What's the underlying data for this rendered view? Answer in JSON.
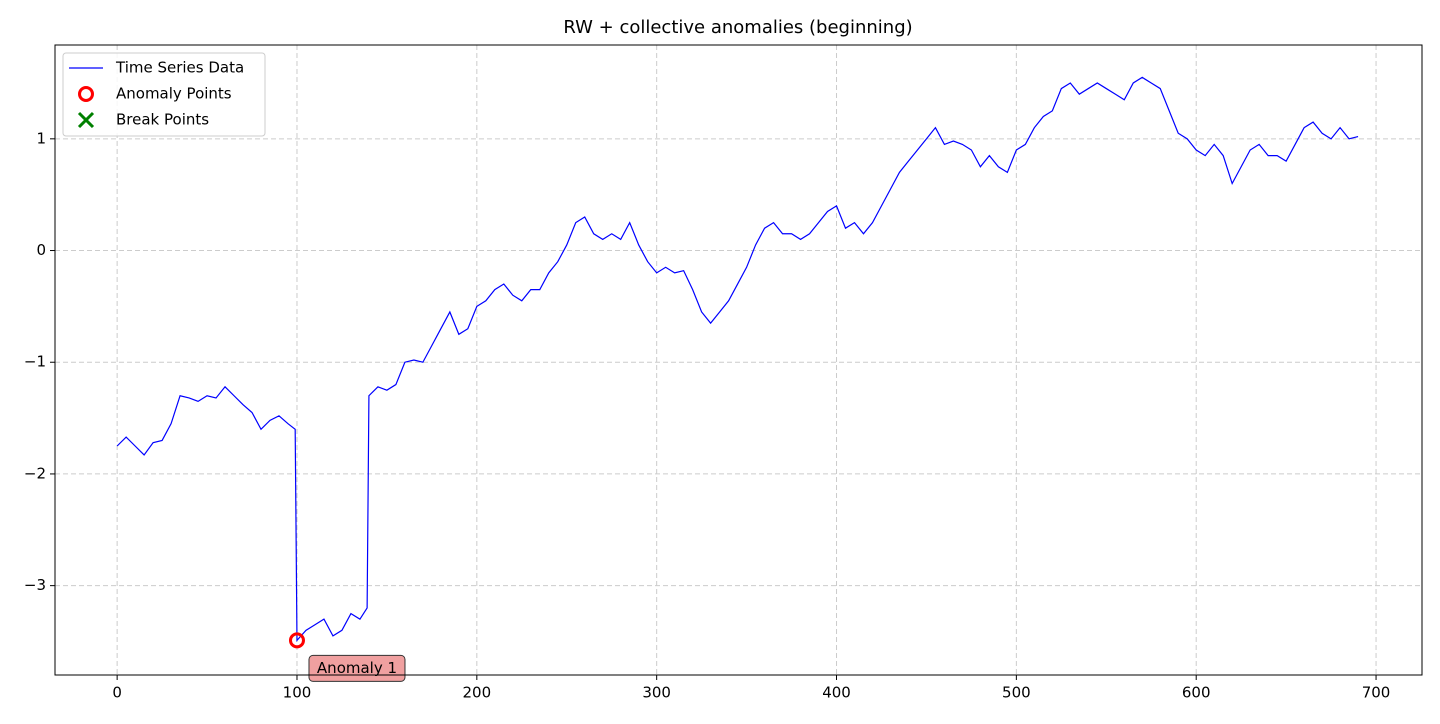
{
  "chart_data": {
    "type": "line",
    "title": "RW + collective anomalies (beginning)",
    "x": [
      0,
      5,
      10,
      15,
      20,
      25,
      30,
      35,
      40,
      45,
      50,
      55,
      60,
      65,
      70,
      75,
      80,
      85,
      90,
      95,
      99,
      100,
      105,
      110,
      115,
      120,
      125,
      130,
      135,
      139,
      140,
      145,
      150,
      155,
      160,
      165,
      170,
      175,
      180,
      185,
      190,
      195,
      200,
      205,
      210,
      215,
      220,
      225,
      230,
      235,
      240,
      245,
      250,
      255,
      260,
      265,
      270,
      275,
      280,
      285,
      290,
      295,
      300,
      305,
      310,
      315,
      320,
      325,
      330,
      335,
      340,
      345,
      350,
      355,
      360,
      365,
      370,
      375,
      380,
      385,
      390,
      395,
      400,
      405,
      410,
      415,
      420,
      425,
      430,
      435,
      440,
      445,
      450,
      455,
      460,
      465,
      470,
      475,
      480,
      485,
      490,
      495,
      500,
      505,
      510,
      515,
      520,
      525,
      530,
      535,
      540,
      545,
      550,
      555,
      560,
      565,
      570,
      575,
      580,
      585,
      590,
      595,
      600,
      605,
      610,
      615,
      620,
      625,
      630,
      635,
      640,
      645,
      650,
      655,
      660,
      665,
      670,
      675,
      680,
      685,
      690
    ],
    "series": [
      {
        "name": "Time Series Data",
        "color": "#0000ff",
        "values": [
          -1.75,
          -1.67,
          -1.75,
          -1.83,
          -1.72,
          -1.7,
          -1.55,
          -1.3,
          -1.32,
          -1.35,
          -1.3,
          -1.32,
          -1.22,
          -1.3,
          -1.38,
          -1.45,
          -1.6,
          -1.52,
          -1.48,
          -1.55,
          -1.6,
          -3.49,
          -3.4,
          -3.35,
          -3.3,
          -3.45,
          -3.4,
          -3.25,
          -3.3,
          -3.2,
          -1.3,
          -1.22,
          -1.25,
          -1.2,
          -1.0,
          -0.98,
          -1.0,
          -0.85,
          -0.7,
          -0.55,
          -0.75,
          -0.7,
          -0.5,
          -0.45,
          -0.35,
          -0.3,
          -0.4,
          -0.45,
          -0.35,
          -0.35,
          -0.2,
          -0.1,
          0.05,
          0.25,
          0.3,
          0.15,
          0.1,
          0.15,
          0.1,
          0.25,
          0.05,
          -0.1,
          -0.2,
          -0.15,
          -0.2,
          -0.18,
          -0.35,
          -0.55,
          -0.65,
          -0.55,
          -0.45,
          -0.3,
          -0.15,
          0.05,
          0.2,
          0.25,
          0.15,
          0.15,
          0.1,
          0.15,
          0.25,
          0.35,
          0.4,
          0.2,
          0.25,
          0.15,
          0.25,
          0.4,
          0.55,
          0.7,
          0.8,
          0.9,
          1.0,
          1.1,
          0.95,
          0.98,
          0.95,
          0.9,
          0.75,
          0.85,
          0.75,
          0.7,
          0.9,
          0.95,
          1.1,
          1.2,
          1.25,
          1.45,
          1.5,
          1.4,
          1.45,
          1.5,
          1.45,
          1.4,
          1.35,
          1.5,
          1.55,
          1.5,
          1.45,
          1.25,
          1.05,
          1.0,
          0.9,
          0.85,
          0.95,
          0.85,
          0.6,
          0.75,
          0.9,
          0.95,
          0.85,
          0.85,
          0.8,
          0.95,
          1.1,
          1.15,
          1.05,
          1.0,
          1.1,
          1.0,
          1.02
        ]
      },
      {
        "name": "Anomaly Points",
        "type": "scatter",
        "marker": "circle",
        "color": "#ff0000",
        "x": [
          100
        ],
        "values": [
          -3.49
        ]
      },
      {
        "name": "Break Points",
        "type": "scatter",
        "marker": "x",
        "color": "#008000",
        "x": [],
        "values": []
      }
    ],
    "annotations": [
      {
        "text": "Anomaly 1",
        "point": 0
      }
    ],
    "xlim": [
      -34.55,
      725.55
    ],
    "xticks": [
      0,
      100,
      200,
      300,
      400,
      500,
      600,
      700
    ],
    "ylim": [
      -3.8,
      1.84
    ],
    "yticks": [
      {
        "value": -3,
        "label": "−3"
      },
      {
        "value": -2,
        "label": "−2"
      },
      {
        "value": -1,
        "label": "−1"
      },
      0,
      1
    ],
    "grid": true,
    "legend": "upper left"
  }
}
